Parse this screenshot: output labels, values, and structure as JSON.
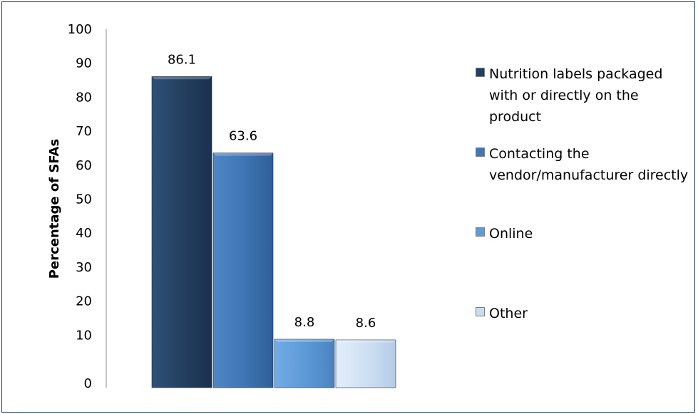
{
  "chart_data": {
    "type": "bar",
    "title": "",
    "xlabel": "",
    "ylabel": "Percentage of SFAs",
    "ylim": [
      0,
      100
    ],
    "yticks": [
      0,
      10,
      20,
      30,
      40,
      50,
      60,
      70,
      80,
      90,
      100
    ],
    "grid": false,
    "legend_position": "right",
    "categories": [
      "Nutrition labels packaged with or directly on the product",
      "Contacting the vendor/manufacturer directly",
      "Online",
      "Other"
    ],
    "values": [
      86.1,
      63.6,
      8.8,
      8.6
    ],
    "value_labels": [
      "86.1",
      "63.6",
      "8.8",
      "8.6"
    ],
    "colors": [
      "#243f60",
      "#3f76b5",
      "#5e9ad8",
      "#c9dcf2"
    ]
  }
}
